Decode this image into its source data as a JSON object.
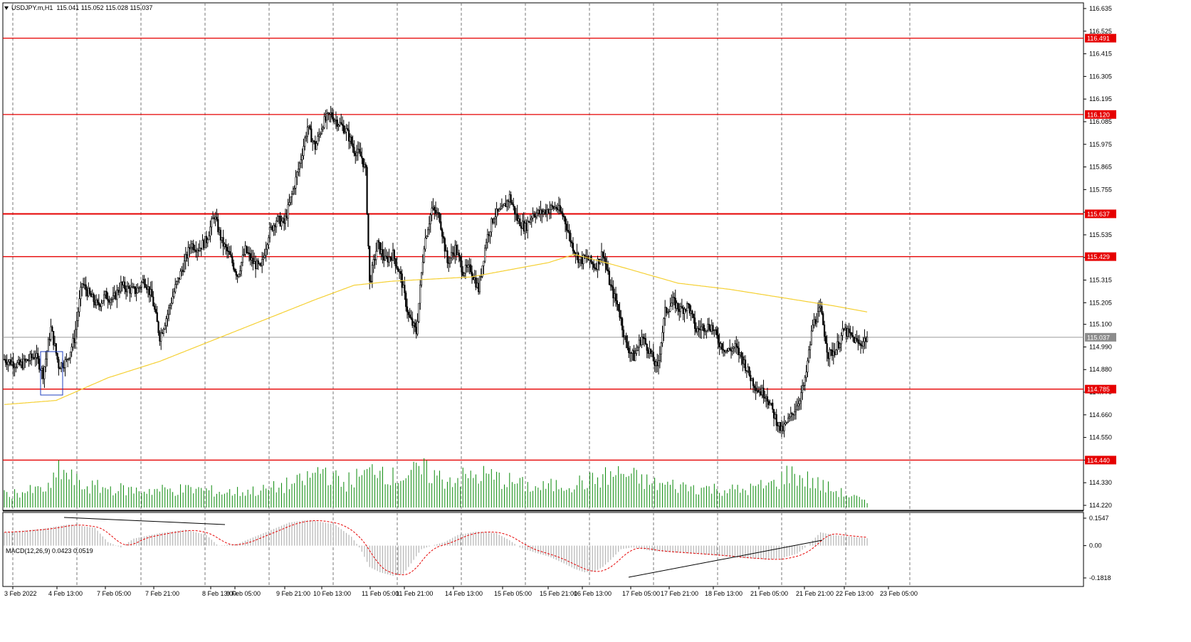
{
  "header": {
    "symbol": "USDJPY.m,H1",
    "ohlc": "115.041 115.052 115.028 115.037"
  },
  "macd_header": "MACD(12,26,9) 0.0423 0.0519",
  "colors": {
    "candle": "#000000",
    "level_line": "#e60000",
    "level_label_bg": "#e60000",
    "ma_line": "#f5d033",
    "volume": "#0a8a0a",
    "macd_hist": "#b4b4b4",
    "macd_signal": "#e60000",
    "box": "#1f3fbf",
    "current_price_line": "#9a9a9a"
  },
  "chart_data": [
    {
      "type": "candlestick",
      "symbol": "USDJPY.m",
      "timeframe": "H1",
      "y_axis_ticks": [
        "116.635",
        "116.525",
        "116.415",
        "116.305",
        "116.195",
        "116.085",
        "115.975",
        "115.865",
        "115.755",
        "115.645",
        "115.535",
        "115.425",
        "115.315",
        "115.205",
        "115.100",
        "114.990",
        "114.880",
        "114.770",
        "114.660",
        "114.550",
        "114.440",
        "114.330",
        "114.220"
      ],
      "y_range": [
        114.205,
        116.66
      ],
      "x_axis_ticks": [
        "3 Feb 2022",
        "4 Feb 13:00",
        "7 Feb 05:00",
        "7 Feb 21:00",
        "8 Feb 13:00",
        "9 Feb 05:00",
        "9 Feb 21:00",
        "10 Feb 13:00",
        "11 Feb 05:00",
        "11 Feb 21:00",
        "14 Feb 13:00",
        "15 Feb 05:00",
        "15 Feb 21:00",
        "16 Feb 13:00",
        "17 Feb 05:00",
        "17 Feb 21:00",
        "18 Feb 13:00",
        "21 Feb 05:00",
        "21 Feb 21:00",
        "22 Feb 13:00",
        "23 Feb 05:00"
      ],
      "horizontal_levels": [
        "116.491",
        "116.120",
        "115.637",
        "115.429",
        "114.785",
        "114.440"
      ],
      "current_price": "115.037",
      "grid": "vertical dashed",
      "path_anchors": [
        [
          0,
          114.93
        ],
        [
          12,
          114.9
        ],
        [
          24,
          114.95
        ],
        [
          30,
          114.86
        ],
        [
          36,
          115.08
        ],
        [
          42,
          114.9
        ],
        [
          48,
          114.92
        ],
        [
          54,
          115.03
        ],
        [
          60,
          115.3
        ],
        [
          66,
          115.24
        ],
        [
          72,
          115.19
        ],
        [
          78,
          115.24
        ],
        [
          84,
          115.22
        ],
        [
          90,
          115.29
        ],
        [
          96,
          115.27
        ],
        [
          102,
          115.26
        ],
        [
          108,
          115.32
        ],
        [
          114,
          115.23
        ],
        [
          120,
          115.04
        ],
        [
          126,
          115.15
        ],
        [
          132,
          115.28
        ],
        [
          138,
          115.38
        ],
        [
          144,
          115.49
        ],
        [
          150,
          115.47
        ],
        [
          156,
          115.51
        ],
        [
          162,
          115.63
        ],
        [
          168,
          115.5
        ],
        [
          174,
          115.43
        ],
        [
          180,
          115.34
        ],
        [
          186,
          115.46
        ],
        [
          192,
          115.4
        ],
        [
          198,
          115.37
        ],
        [
          204,
          115.54
        ],
        [
          210,
          115.61
        ],
        [
          216,
          115.59
        ],
        [
          222,
          115.73
        ],
        [
          228,
          115.88
        ],
        [
          234,
          116.06
        ],
        [
          240,
          115.96
        ],
        [
          246,
          116.08
        ],
        [
          252,
          116.12
        ],
        [
          258,
          116.08
        ],
        [
          264,
          116.04
        ],
        [
          270,
          115.95
        ],
        [
          276,
          115.91
        ],
        [
          279,
          115.84
        ],
        [
          282,
          115.3
        ],
        [
          288,
          115.49
        ],
        [
          294,
          115.41
        ],
        [
          300,
          115.44
        ],
        [
          306,
          115.33
        ],
        [
          312,
          115.14
        ],
        [
          318,
          115.06
        ],
        [
          324,
          115.49
        ],
        [
          330,
          115.66
        ],
        [
          336,
          115.62
        ],
        [
          342,
          115.4
        ],
        [
          348,
          115.47
        ],
        [
          354,
          115.36
        ],
        [
          360,
          115.37
        ],
        [
          366,
          115.27
        ],
        [
          372,
          115.51
        ],
        [
          378,
          115.63
        ],
        [
          384,
          115.65
        ],
        [
          390,
          115.72
        ],
        [
          396,
          115.61
        ],
        [
          402,
          115.57
        ],
        [
          408,
          115.64
        ],
        [
          414,
          115.64
        ],
        [
          420,
          115.66
        ],
        [
          426,
          115.67
        ],
        [
          432,
          115.62
        ],
        [
          438,
          115.49
        ],
        [
          444,
          115.41
        ],
        [
          450,
          115.42
        ],
        [
          456,
          115.38
        ],
        [
          462,
          115.45
        ],
        [
          468,
          115.28
        ],
        [
          474,
          115.18
        ],
        [
          480,
          115.0
        ],
        [
          486,
          114.94
        ],
        [
          492,
          115.04
        ],
        [
          498,
          114.97
        ],
        [
          504,
          114.88
        ],
        [
          510,
          115.16
        ],
        [
          516,
          115.21
        ],
        [
          522,
          115.17
        ],
        [
          528,
          115.19
        ],
        [
          534,
          115.07
        ],
        [
          540,
          115.09
        ],
        [
          546,
          115.09
        ],
        [
          552,
          115.01
        ],
        [
          558,
          114.97
        ],
        [
          564,
          114.99
        ],
        [
          570,
          114.93
        ],
        [
          576,
          114.84
        ],
        [
          582,
          114.78
        ],
        [
          588,
          114.76
        ],
        [
          594,
          114.66
        ],
        [
          600,
          114.58
        ],
        [
          606,
          114.64
        ],
        [
          612,
          114.71
        ],
        [
          618,
          114.82
        ],
        [
          624,
          115.1
        ],
        [
          630,
          115.17
        ],
        [
          636,
          114.95
        ],
        [
          642,
          114.98
        ],
        [
          648,
          115.07
        ],
        [
          654,
          115.04
        ],
        [
          660,
          115.0
        ],
        [
          666,
          115.037
        ]
      ],
      "ma_anchors": [
        [
          0,
          114.71
        ],
        [
          40,
          114.73
        ],
        [
          80,
          114.84
        ],
        [
          120,
          114.92
        ],
        [
          160,
          115.02
        ],
        [
          200,
          115.12
        ],
        [
          240,
          115.22
        ],
        [
          270,
          115.29
        ],
        [
          300,
          115.31
        ],
        [
          360,
          115.33
        ],
        [
          420,
          115.4
        ],
        [
          440,
          115.44
        ],
        [
          470,
          115.39
        ],
        [
          520,
          115.3
        ],
        [
          560,
          115.27
        ],
        [
          610,
          115.22
        ],
        [
          640,
          115.19
        ],
        [
          666,
          115.16
        ]
      ],
      "volume_anchors": [
        [
          0,
          0.3
        ],
        [
          36,
          0.45
        ],
        [
          42,
          0.9
        ],
        [
          60,
          0.5
        ],
        [
          100,
          0.4
        ],
        [
          150,
          0.42
        ],
        [
          170,
          0.35
        ],
        [
          200,
          0.4
        ],
        [
          230,
          0.6
        ],
        [
          246,
          0.9
        ],
        [
          260,
          0.55
        ],
        [
          282,
          0.8
        ],
        [
          288,
          1.0
        ],
        [
          300,
          0.7
        ],
        [
          324,
          0.85
        ],
        [
          340,
          0.65
        ],
        [
          372,
          0.75
        ],
        [
          410,
          0.45
        ],
        [
          450,
          0.6
        ],
        [
          476,
          0.8
        ],
        [
          500,
          0.55
        ],
        [
          540,
          0.45
        ],
        [
          570,
          0.4
        ],
        [
          594,
          0.55
        ],
        [
          606,
          0.8
        ],
        [
          624,
          0.6
        ],
        [
          640,
          0.4
        ],
        [
          660,
          0.2
        ],
        [
          666,
          0.1
        ]
      ],
      "macd_anchors": [
        [
          0,
          0.075
        ],
        [
          30,
          0.095
        ],
        [
          50,
          0.12
        ],
        [
          70,
          0.1
        ],
        [
          80,
          0.02
        ],
        [
          90,
          -0.01
        ],
        [
          100,
          0.04
        ],
        [
          120,
          0.07
        ],
        [
          140,
          0.09
        ],
        [
          156,
          0.06
        ],
        [
          165,
          0.0
        ],
        [
          180,
          0.01
        ],
        [
          200,
          0.07
        ],
        [
          220,
          0.13
        ],
        [
          235,
          0.145
        ],
        [
          255,
          0.12
        ],
        [
          268,
          0.05
        ],
        [
          275,
          -0.02
        ],
        [
          282,
          -0.12
        ],
        [
          290,
          -0.15
        ],
        [
          300,
          -0.17
        ],
        [
          308,
          -0.16
        ],
        [
          314,
          -0.1
        ],
        [
          322,
          -0.02
        ],
        [
          330,
          0.0
        ],
        [
          340,
          0.02
        ],
        [
          350,
          0.06
        ],
        [
          365,
          0.08
        ],
        [
          380,
          0.07
        ],
        [
          390,
          0.03
        ],
        [
          398,
          -0.01
        ],
        [
          410,
          -0.04
        ],
        [
          420,
          -0.06
        ],
        [
          432,
          -0.1
        ],
        [
          440,
          -0.13
        ],
        [
          448,
          -0.15
        ],
        [
          456,
          -0.145
        ],
        [
          462,
          -0.12
        ],
        [
          468,
          -0.08
        ],
        [
          476,
          -0.02
        ],
        [
          485,
          -0.01
        ],
        [
          500,
          -0.03
        ],
        [
          520,
          -0.04
        ],
        [
          540,
          -0.05
        ],
        [
          556,
          -0.06
        ],
        [
          570,
          -0.07
        ],
        [
          582,
          -0.075
        ],
        [
          590,
          -0.08
        ],
        [
          600,
          -0.07
        ],
        [
          612,
          -0.045
        ],
        [
          620,
          0.0
        ],
        [
          630,
          0.075
        ],
        [
          640,
          0.06
        ],
        [
          666,
          0.042
        ]
      ],
      "macd_axis_ticks": [
        "0.1547",
        "0.00",
        "-0.1818"
      ]
    }
  ]
}
